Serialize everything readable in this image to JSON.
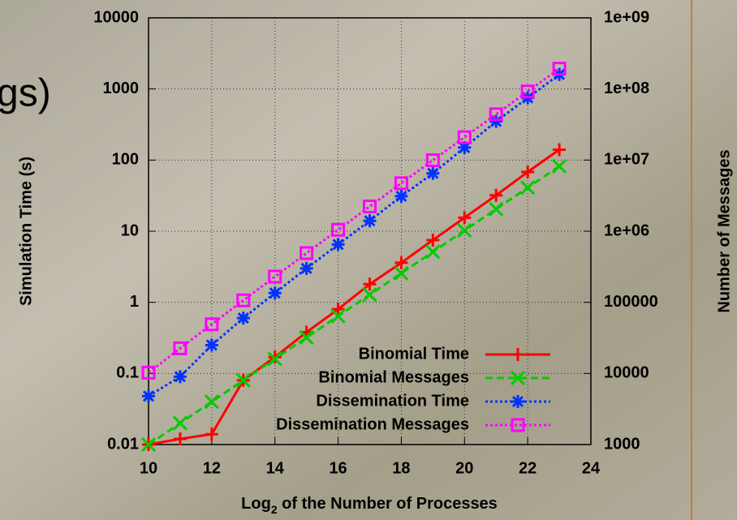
{
  "chart_data": {
    "type": "line",
    "title": "gs)",
    "ylabel": "Simulation Time (s)",
    "y2label": "Number of Messages",
    "xlabel_parts": [
      "Log",
      "2",
      " of the Number of Processes"
    ],
    "x": [
      10,
      11,
      12,
      13,
      14,
      15,
      16,
      17,
      18,
      19,
      20,
      21,
      22,
      23
    ],
    "xlim": [
      10,
      24
    ],
    "xticks": [
      10,
      12,
      14,
      16,
      18,
      20,
      22,
      24
    ],
    "ylim": [
      0.01,
      10000
    ],
    "yticks": [
      0.01,
      0.1,
      1,
      10,
      100,
      1000,
      10000
    ],
    "y2lim": [
      1000,
      1000000000
    ],
    "y2ticks": [
      1000,
      10000,
      100000,
      {
        "value": 1000000,
        "label": "1e+06"
      },
      {
        "value": 10000000,
        "label": "1e+07"
      },
      {
        "value": 100000000,
        "label": "1e+08"
      },
      {
        "value": 1000000000,
        "label": "1e+09"
      }
    ],
    "log_scale": true,
    "grid": true,
    "legend": "lower right",
    "series": [
      {
        "name": "Binomial Time",
        "color": "#ff0000",
        "style": "solid",
        "marker": "plus",
        "values": [
          0.01,
          0.012,
          0.014,
          0.08,
          0.17,
          0.38,
          0.8,
          1.8,
          3.6,
          7.5,
          15.5,
          32,
          68,
          140
        ]
      },
      {
        "name": "Binomial Messages",
        "color": "#00cc00",
        "style": "dashed",
        "marker": "cross",
        "axis": "y2",
        "values": [
          1000,
          2000,
          4000,
          8000,
          16000,
          32000,
          64000,
          128000,
          256000,
          512000,
          1024000,
          2048000,
          4096000,
          8192000
        ]
      },
      {
        "name": "Dissemination Time",
        "color": "#0033ff",
        "style": "dotted",
        "marker": "star",
        "values": [
          0.048,
          0.09,
          0.25,
          0.6,
          1.35,
          3.0,
          6.5,
          14,
          31,
          65,
          150,
          350,
          750,
          1600
        ]
      },
      {
        "name": "Dissemination Messages",
        "color": "#ff00ff",
        "style": "dotted",
        "marker": "square",
        "axis": "y2",
        "values": [
          10240,
          22528,
          49152,
          106496,
          229376,
          491520,
          1048576,
          2228224,
          4718592,
          9961472,
          20971520,
          44040192,
          92274688,
          192937984
        ]
      }
    ]
  }
}
